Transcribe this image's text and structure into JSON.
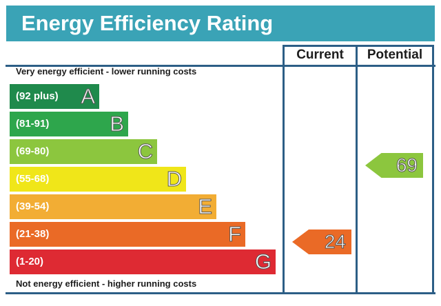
{
  "title": "Energy Efficiency Rating",
  "columns": {
    "current": "Current",
    "potential": "Potential"
  },
  "captions": {
    "top": "Very energy efficient - lower running costs",
    "bottom": "Not energy efficient - higher running costs"
  },
  "bands": [
    {
      "range": "(92 plus)",
      "letter": "A",
      "color": "#1f8a4c"
    },
    {
      "range": "(81-91)",
      "letter": "B",
      "color": "#2ea64c"
    },
    {
      "range": "(69-80)",
      "letter": "C",
      "color": "#8cc63e"
    },
    {
      "range": "(55-68)",
      "letter": "D",
      "color": "#f0e619"
    },
    {
      "range": "(39-54)",
      "letter": "E",
      "color": "#f2ad34"
    },
    {
      "range": "(21-38)",
      "letter": "F",
      "color": "#ea6a26"
    },
    {
      "range": "(1-20)",
      "letter": "G",
      "color": "#de2a33"
    }
  ],
  "ratings": {
    "current": {
      "value": "24",
      "band": "F",
      "color": "#ea6a26"
    },
    "potential": {
      "value": "69",
      "band": "C",
      "color": "#8cc63e"
    }
  },
  "colors": {
    "header": "#3aa3b6",
    "frame": "#2c5e86"
  }
}
